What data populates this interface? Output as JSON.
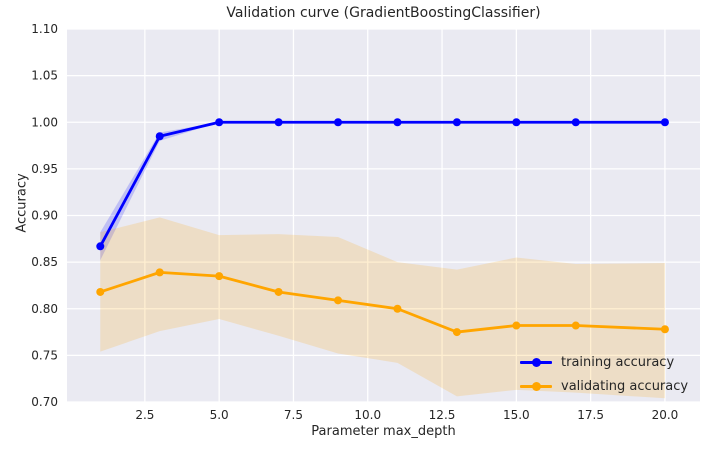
{
  "chart_data": {
    "type": "line",
    "title": "Validation curve (GradientBoostingClassifier)",
    "xlabel": "Parameter max_depth",
    "ylabel": "Accuracy",
    "xlim": [
      -0.12,
      21.18
    ],
    "ylim": [
      0.7,
      1.1
    ],
    "grid": true,
    "legend_position": "lower right",
    "xticks": {
      "values": [
        2.5,
        5.0,
        7.5,
        10.0,
        12.5,
        15.0,
        17.5,
        20.0
      ],
      "labels": [
        "2.5",
        "5.0",
        "7.5",
        "10.0",
        "12.5",
        "15.0",
        "17.5",
        "20.0"
      ]
    },
    "yticks": {
      "values": [
        0.7,
        0.75,
        0.8,
        0.85,
        0.9,
        0.95,
        1.0,
        1.05,
        1.1
      ],
      "labels": [
        "0.70",
        "0.75",
        "0.80",
        "0.85",
        "0.90",
        "0.95",
        "1.00",
        "1.05",
        "1.10"
      ]
    },
    "x": [
      1,
      3,
      5,
      7,
      9,
      11,
      13,
      15,
      17,
      20
    ],
    "series": [
      {
        "id": "training",
        "name": "training accuracy",
        "color": "#0000ff",
        "band_color": "rgba(0,0,255,0.18)",
        "values": [
          0.867,
          0.985,
          1.0,
          1.0,
          1.0,
          1.0,
          1.0,
          1.0,
          1.0,
          1.0
        ],
        "band_upper": [
          0.882,
          0.989,
          1.0,
          1.0,
          1.0,
          1.0,
          1.0,
          1.0,
          1.0,
          1.0
        ],
        "band_lower": [
          0.852,
          0.98,
          1.0,
          1.0,
          1.0,
          1.0,
          1.0,
          1.0,
          1.0,
          1.0
        ]
      },
      {
        "id": "validating",
        "name": "validating accuracy",
        "color": "#ffa500",
        "band_color": "rgba(255,165,0,0.18)",
        "values": [
          0.818,
          0.839,
          0.835,
          0.818,
          0.809,
          0.8,
          0.775,
          0.782,
          0.782,
          0.778
        ],
        "band_upper": [
          0.882,
          0.898,
          0.879,
          0.88,
          0.877,
          0.85,
          0.842,
          0.855,
          0.848,
          0.849
        ],
        "band_lower": [
          0.754,
          0.776,
          0.789,
          0.771,
          0.752,
          0.742,
          0.706,
          0.713,
          0.71,
          0.704
        ]
      }
    ],
    "colors": {
      "plot_background": "#eaeaf2",
      "grid": "#ffffff",
      "text": "#262626"
    }
  }
}
